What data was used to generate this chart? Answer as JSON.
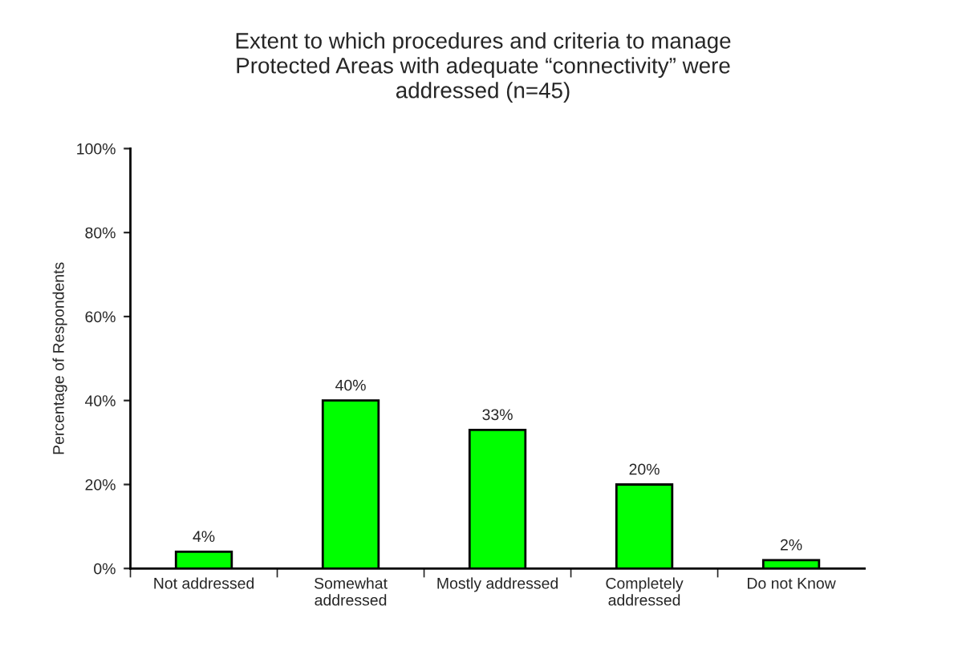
{
  "chart_data": {
    "type": "bar",
    "title": "Extent to which procedures and criteria to manage\nProtected Areas with adequate “connectivity” were\naddressed (n=45)",
    "ylabel": "Percentage of Respondents",
    "categories": [
      "Not addressed",
      "Somewhat\naddressed",
      "Mostly addressed",
      "Completely\naddressed",
      "Do not Know"
    ],
    "values": [
      4,
      40,
      33,
      20,
      2
    ],
    "value_labels": [
      "4%",
      "40%",
      "33%",
      "20%",
      "2%"
    ],
    "color": "#00ff00",
    "ylim": [
      0,
      100
    ],
    "yticks": [
      {
        "value": 0,
        "label": "0%"
      },
      {
        "value": 20,
        "label": "20%"
      },
      {
        "value": 40,
        "label": "40%"
      },
      {
        "value": 60,
        "label": "60%"
      },
      {
        "value": 80,
        "label": "80%"
      },
      {
        "value": 100,
        "label": "100%"
      }
    ],
    "grid": false,
    "legend": false
  }
}
